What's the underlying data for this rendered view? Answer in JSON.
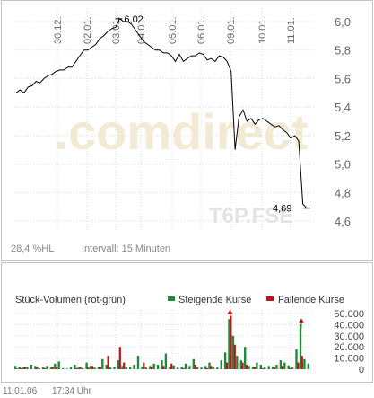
{
  "watermark": {
    "brand": ".comdirect",
    "symbol": "T6P.FSE"
  },
  "price_footer": {
    "hl_label": "28,4 %HL",
    "interval_label": "Intervall: 15 Minuten"
  },
  "volume_header": {
    "title": "Stück-Volumen (rot-grün)",
    "rising_label": "Steigende Kurse",
    "falling_label": "Fallende Kurse"
  },
  "timestamp": {
    "date": "11.01.06",
    "time": "17:34 Uhr"
  },
  "colors": {
    "rising": "#1f8a3a",
    "falling": "#c0141c",
    "price_line": "#000000",
    "grid": "#d8d8d8"
  },
  "chart_data": [
    {
      "type": "line",
      "title": "",
      "xlabel": "",
      "ylabel": "",
      "x_ticks": [
        "30.12.",
        "02.01.",
        "03.01.",
        "04.01.",
        "05.01.",
        "06.01.",
        "09.01.",
        "10.01.",
        "11.01."
      ],
      "y_ticks": [
        "6,0",
        "5,8",
        "5,6",
        "5,4",
        "5,2",
        "5,0",
        "4,8",
        "4,6"
      ],
      "ylim": [
        4.6,
        6.0
      ],
      "grid": true,
      "annotations": [
        {
          "label": "6,02",
          "value": 6.02
        },
        {
          "label": "4,69",
          "value": 4.69
        }
      ],
      "series": [
        {
          "values": [
            5.5,
            5.52,
            5.5,
            5.54,
            5.55,
            5.58,
            5.57,
            5.6,
            5.62,
            5.63,
            5.65,
            5.66,
            5.66,
            5.68,
            5.68,
            5.72,
            5.76,
            5.8,
            5.8,
            5.82,
            5.84,
            5.88,
            5.9,
            5.93,
            5.95,
            5.96,
            6.02,
            6.0,
            6.0,
            5.98,
            5.94,
            5.9,
            5.86,
            5.84,
            5.82,
            5.8,
            5.8,
            5.78,
            5.78,
            5.76,
            5.72,
            5.77,
            5.72,
            5.74,
            5.76,
            5.76,
            5.78,
            5.77,
            5.73,
            5.74,
            5.72,
            5.76,
            5.75,
            5.72,
            5.65,
            5.1,
            5.33,
            5.38,
            5.3,
            5.32,
            5.28,
            5.31,
            5.32,
            5.3,
            5.28,
            5.26,
            5.27,
            5.24,
            5.22,
            5.18,
            5.2,
            5.16,
            4.72,
            4.69
          ]
        }
      ]
    },
    {
      "type": "bar",
      "title": "",
      "ylabel": "",
      "y_ticks": [
        "50.000",
        "40.000",
        "30.000",
        "20.000",
        "10.000",
        "0"
      ],
      "ylim": [
        0,
        50000
      ],
      "grid": true,
      "series": [
        {
          "name": "Steigende Kurse",
          "values": [
            3000,
            2000,
            1500,
            2500,
            4000,
            3000,
            1000,
            2000,
            3000,
            1500,
            5000,
            7000,
            1000,
            500,
            2000,
            4000,
            1500,
            1000,
            6000,
            3000,
            1500,
            2500,
            9000,
            4000,
            1500,
            2000,
            8000,
            3000,
            1500,
            2000,
            4000,
            12000,
            2500,
            1500,
            3000,
            5000,
            4000,
            8000,
            14000,
            2000,
            3500,
            1500,
            2500,
            5000,
            3000,
            9000,
            2000,
            1500,
            3000,
            6000,
            2500,
            1500,
            8000,
            15000,
            45000,
            30000,
            12000,
            8000,
            20000,
            3000,
            2500,
            6000,
            4000,
            2000,
            3000,
            2500,
            4000,
            8000,
            6000,
            3500,
            2000,
            18000,
            40000,
            9000,
            5000
          ]
        },
        {
          "name": "Fallende Kurse",
          "values": [
            500,
            1000,
            2000,
            0,
            0,
            1500,
            0,
            1000,
            0,
            2500,
            1500,
            0,
            0,
            0,
            0,
            1000,
            2000,
            0,
            1500,
            3000,
            0,
            2000,
            0,
            12000,
            0,
            0,
            20000,
            6000,
            0,
            0,
            0,
            0,
            6000,
            0,
            2000,
            0,
            0,
            3000,
            0,
            5000,
            0,
            0,
            1000,
            0,
            0,
            4000,
            0,
            0,
            1000,
            3000,
            0,
            0,
            0,
            6000,
            48000,
            22000,
            0,
            6000,
            4000,
            0,
            2000,
            0,
            1000,
            0,
            0,
            1500,
            0,
            3000,
            0,
            1000,
            0,
            6000,
            12000,
            0,
            0
          ]
        }
      ],
      "annotations": [
        {
          "series": "Fallende Kurse",
          "value": 48000
        },
        {
          "series": "Steigende Kurse",
          "value": 40000
        }
      ]
    }
  ]
}
